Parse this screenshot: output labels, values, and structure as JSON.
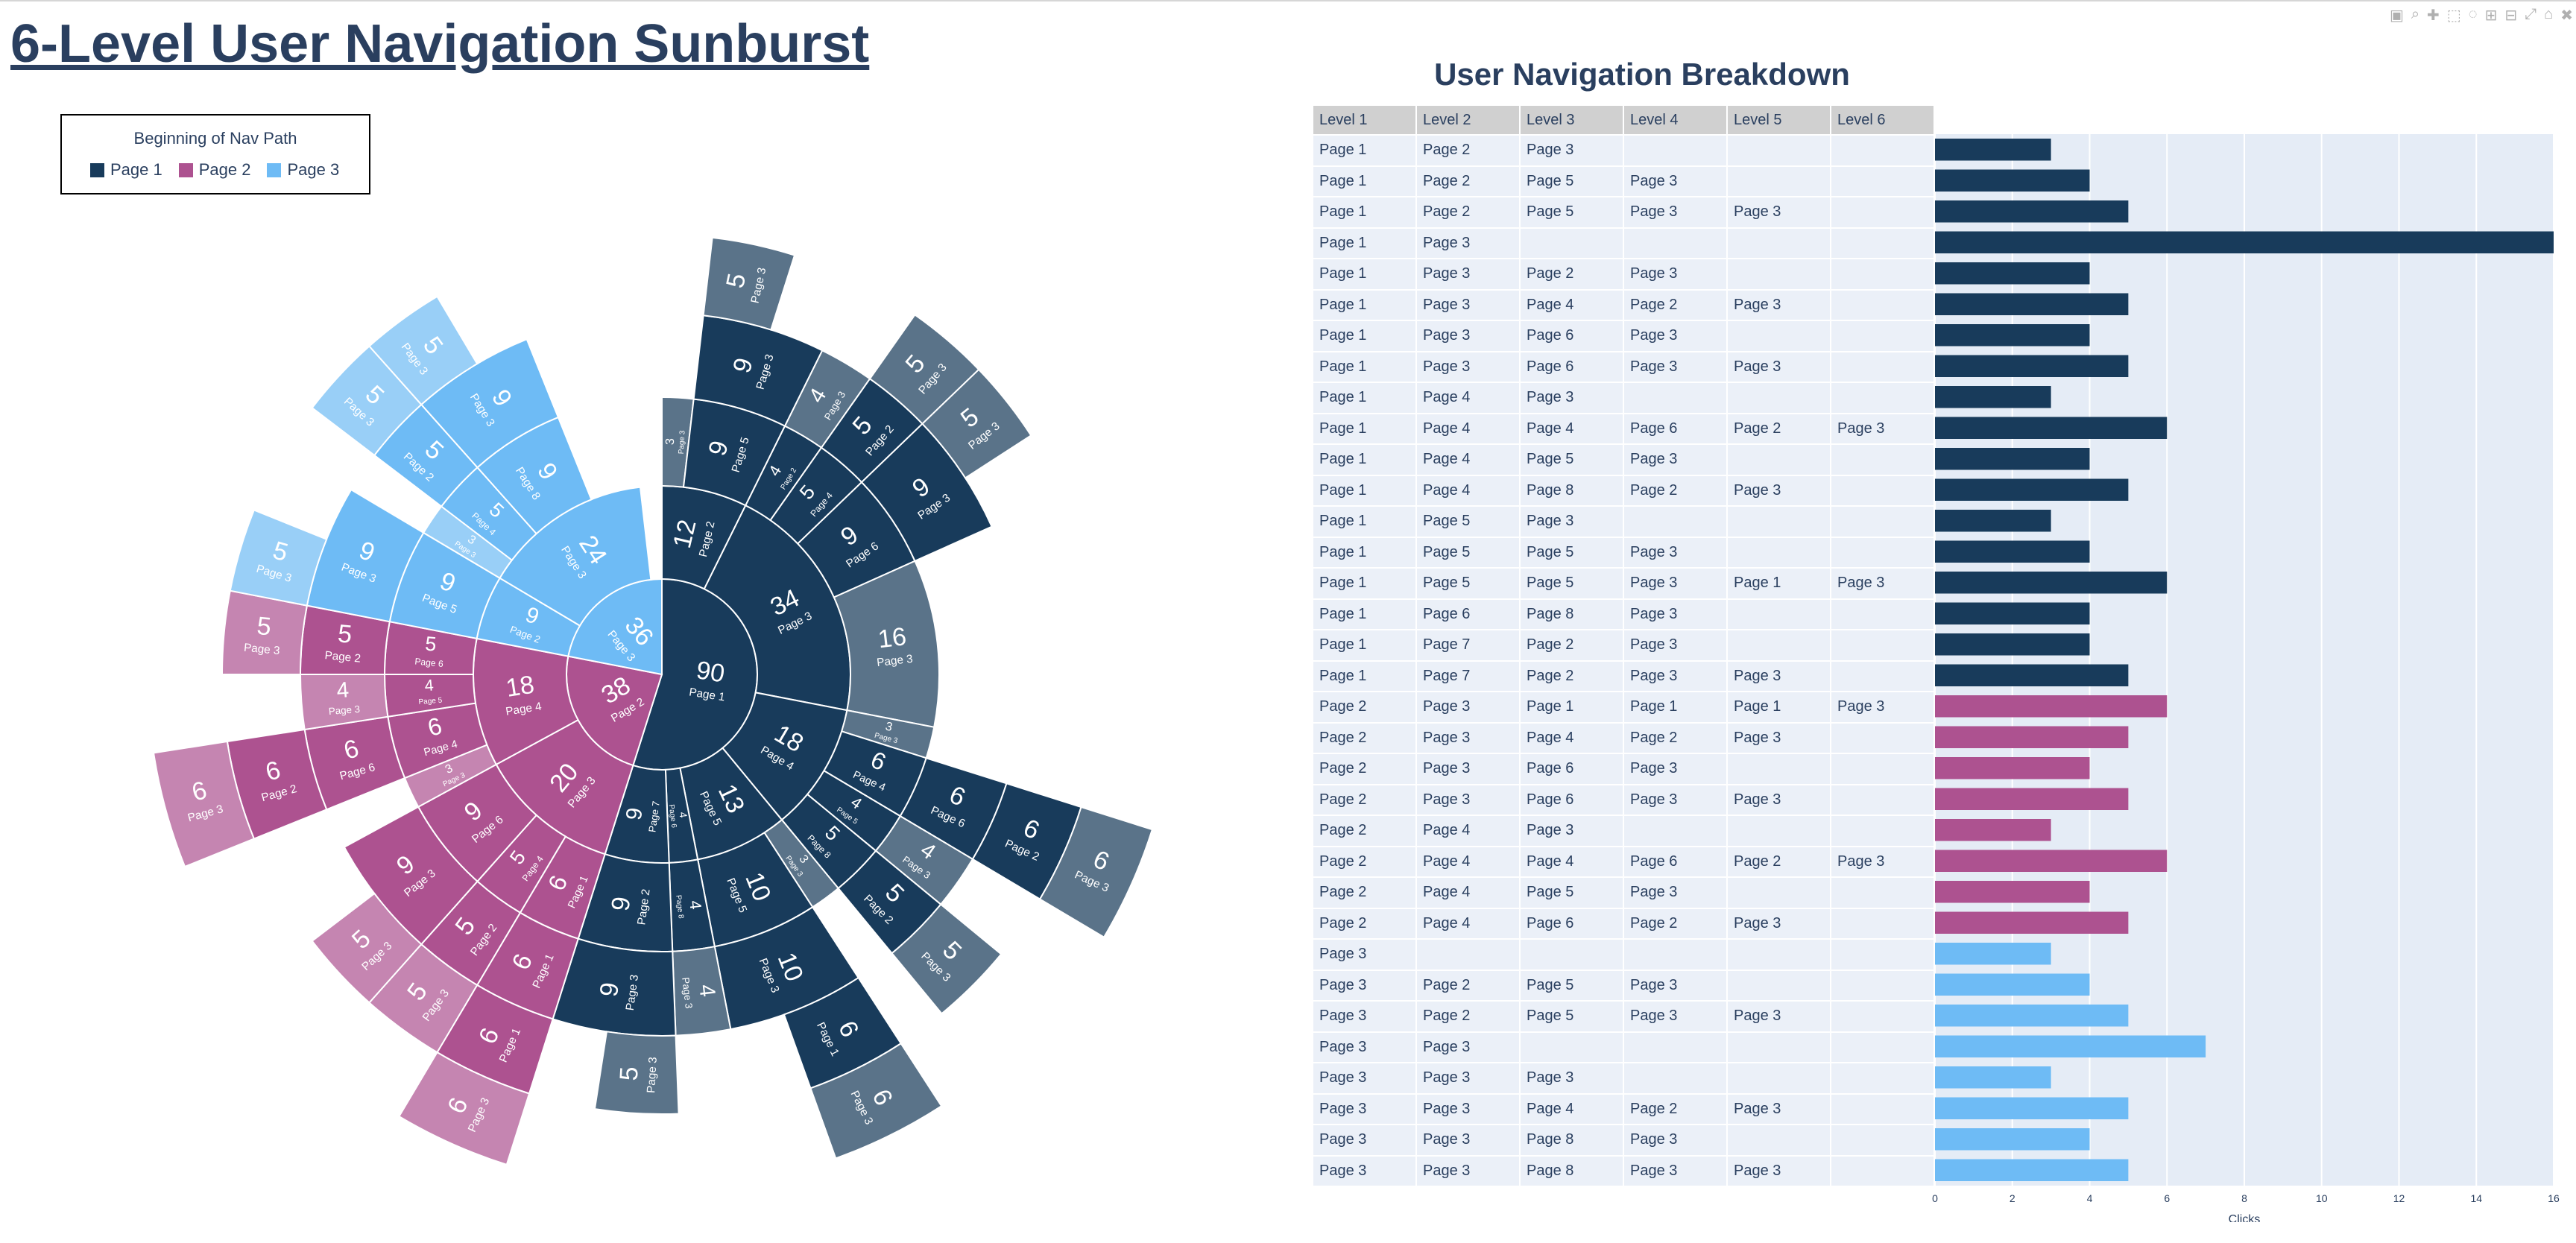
{
  "title": "6-Level User Navigation Sunburst",
  "modebar": [
    "▣",
    "⌕",
    "✚",
    "⬚",
    "◌",
    "⊞",
    "⊟",
    "⤢",
    "⌂",
    "✖"
  ],
  "legend": {
    "title": "Beginning of Nav Path",
    "items": [
      {
        "label": "Page 1",
        "color": "#183b5b"
      },
      {
        "label": "Page 2",
        "color": "#ad5290"
      },
      {
        "label": "Page 3",
        "color": "#6ebbf5"
      }
    ]
  },
  "table_title": "User Navigation Breakdown",
  "table_headers": [
    "Level 1",
    "Level 2",
    "Level 3",
    "Level 4",
    "Level 5",
    "Level 6"
  ],
  "chart_data": [
    {
      "type": "sunburst",
      "colors": {
        "Page 1": [
          "#183b5b",
          "#183b5b",
          "#5a7389"
        ],
        "Page 2": [
          "#ad5290",
          "#ad5290",
          "#c585b1"
        ],
        "Page 3": [
          "#6ebbf5",
          "#6ebbf5",
          "#99cff7"
        ]
      },
      "tree": [
        {
          "label": "Page 1",
          "value": 90,
          "children": [
            {
              "label": "Page 2",
              "value": 12,
              "children": [
                {
                  "label": "Page 3",
                  "value": 3
                },
                {
                  "label": "Page 5",
                  "value": 9,
                  "children": [
                    {
                      "label": "Page 3",
                      "value": 9,
                      "children": [
                        {
                          "label": "Page 3",
                          "value": 5
                        }
                      ]
                    }
                  ]
                }
              ]
            },
            {
              "label": "Page 3",
              "value": 34,
              "children": [
                {
                  "label": "Page 2",
                  "value": 4,
                  "children": [
                    {
                      "label": "Page 3",
                      "value": 4
                    }
                  ]
                },
                {
                  "label": "Page 4",
                  "value": 5,
                  "children": [
                    {
                      "label": "Page 2",
                      "value": 5,
                      "children": [
                        {
                          "label": "Page 3",
                          "value": 5
                        }
                      ]
                    }
                  ]
                },
                {
                  "label": "Page 6",
                  "value": 9,
                  "children": [
                    {
                      "label": "Page 3",
                      "value": 9,
                      "children": [
                        {
                          "label": "Page 3",
                          "value": 5
                        }
                      ]
                    }
                  ]
                },
                {
                  "label": "Page 3",
                  "value": 16
                }
              ]
            },
            {
              "label": "Page 4",
              "value": 18,
              "children": [
                {
                  "label": "Page 3",
                  "value": 3
                },
                {
                  "label": "Page 4",
                  "value": 6,
                  "children": [
                    {
                      "label": "Page 6",
                      "value": 6,
                      "children": [
                        {
                          "label": "Page 2",
                          "value": 6,
                          "children": [
                            {
                              "label": "Page 3",
                              "value": 6
                            }
                          ]
                        }
                      ]
                    }
                  ]
                },
                {
                  "label": "Page 5",
                  "value": 4,
                  "children": [
                    {
                      "label": "Page 3",
                      "value": 4
                    }
                  ]
                },
                {
                  "label": "Page 8",
                  "value": 5,
                  "children": [
                    {
                      "label": "Page 2",
                      "value": 5,
                      "children": [
                        {
                          "label": "Page 3",
                          "value": 5
                        }
                      ]
                    }
                  ]
                }
              ]
            },
            {
              "label": "Page 5",
              "value": 13,
              "children": [
                {
                  "label": "Page 3",
                  "value": 3
                },
                {
                  "label": "Page 5",
                  "value": 10,
                  "children": [
                    {
                      "label": "Page 3",
                      "value": 10,
                      "children": [
                        {
                          "label": "Page 1",
                          "value": 6,
                          "children": [
                            {
                              "label": "Page 3",
                              "value": 6
                            }
                          ]
                        }
                      ]
                    }
                  ]
                }
              ]
            },
            {
              "label": "Page 6",
              "value": 4,
              "children": [
                {
                  "label": "Page 8",
                  "value": 4,
                  "children": [
                    {
                      "label": "Page 3",
                      "value": 4
                    }
                  ]
                }
              ]
            },
            {
              "label": "Page 7",
              "value": 9,
              "children": [
                {
                  "label": "Page 2",
                  "value": 9,
                  "children": [
                    {
                      "label": "Page 3",
                      "value": 9,
                      "children": [
                        {
                          "label": "Page 3",
                          "value": 5
                        }
                      ]
                    }
                  ]
                }
              ]
            }
          ]
        },
        {
          "label": "Page 2",
          "value": 38,
          "children": [
            {
              "label": "Page 3",
              "value": 20,
              "children": [
                {
                  "label": "Page 1",
                  "value": 6,
                  "children": [
                    {
                      "label": "Page 1",
                      "value": 6,
                      "children": [
                        {
                          "label": "Page 1",
                          "value": 6,
                          "children": [
                            {
                              "label": "Page 3",
                              "value": 6
                            }
                          ]
                        }
                      ]
                    }
                  ]
                },
                {
                  "label": "Page 4",
                  "value": 5,
                  "children": [
                    {
                      "label": "Page 2",
                      "value": 5,
                      "children": [
                        {
                          "label": "Page 3",
                          "value": 5
                        }
                      ]
                    }
                  ]
                },
                {
                  "label": "Page 6",
                  "value": 9,
                  "children": [
                    {
                      "label": "Page 3",
                      "value": 9,
                      "children": [
                        {
                          "label": "Page 3",
                          "value": 5
                        }
                      ]
                    }
                  ]
                }
              ]
            },
            {
              "label": "Page 4",
              "value": 18,
              "children": [
                {
                  "label": "Page 3",
                  "value": 3
                },
                {
                  "label": "Page 4",
                  "value": 6,
                  "children": [
                    {
                      "label": "Page 6",
                      "value": 6,
                      "children": [
                        {
                          "label": "Page 2",
                          "value": 6,
                          "children": [
                            {
                              "label": "Page 3",
                              "value": 6
                            }
                          ]
                        }
                      ]
                    }
                  ]
                },
                {
                  "label": "Page 5",
                  "value": 4,
                  "children": [
                    {
                      "label": "Page 3",
                      "value": 4
                    }
                  ]
                },
                {
                  "label": "Page 6",
                  "value": 5,
                  "children": [
                    {
                      "label": "Page 2",
                      "value": 5,
                      "children": [
                        {
                          "label": "Page 3",
                          "value": 5
                        }
                      ]
                    }
                  ]
                }
              ]
            }
          ]
        },
        {
          "label": "Page 3",
          "value": 36,
          "children": [
            {
              "label": "Page 2",
              "value": 9,
              "children": [
                {
                  "label": "Page 5",
                  "value": 9,
                  "children": [
                    {
                      "label": "Page 3",
                      "value": 9,
                      "children": [
                        {
                          "label": "Page 3",
                          "value": 5
                        }
                      ]
                    }
                  ]
                }
              ]
            },
            {
              "label": "Page 3",
              "value": 24,
              "children": [
                {
                  "label": "Page 3",
                  "value": 3
                },
                {
                  "label": "Page 4",
                  "value": 5,
                  "children": [
                    {
                      "label": "Page 2",
                      "value": 5,
                      "children": [
                        {
                          "label": "Page 3",
                          "value": 5
                        }
                      ]
                    }
                  ]
                },
                {
                  "label": "Page 8",
                  "value": 9,
                  "children": [
                    {
                      "label": "Page 3",
                      "value": 9,
                      "children": [
                        {
                          "label": "Page 3",
                          "value": 5
                        }
                      ]
                    }
                  ]
                }
              ]
            }
          ]
        }
      ]
    },
    {
      "type": "bar",
      "orientation": "horizontal",
      "xlabel": "Clicks",
      "xlim": [
        0,
        16
      ],
      "xticks": [
        0,
        2,
        4,
        6,
        8,
        10,
        12,
        14,
        16
      ],
      "rows": [
        {
          "path": [
            "Page 1",
            "Page 2",
            "Page 3",
            "",
            "",
            ""
          ],
          "clicks": 3
        },
        {
          "path": [
            "Page 1",
            "Page 2",
            "Page 5",
            "Page 3",
            "",
            ""
          ],
          "clicks": 4
        },
        {
          "path": [
            "Page 1",
            "Page 2",
            "Page 5",
            "Page 3",
            "Page 3",
            ""
          ],
          "clicks": 5
        },
        {
          "path": [
            "Page 1",
            "Page 3",
            "",
            "",
            "",
            ""
          ],
          "clicks": 16
        },
        {
          "path": [
            "Page 1",
            "Page 3",
            "Page 2",
            "Page 3",
            "",
            ""
          ],
          "clicks": 4
        },
        {
          "path": [
            "Page 1",
            "Page 3",
            "Page 4",
            "Page 2",
            "Page 3",
            ""
          ],
          "clicks": 5
        },
        {
          "path": [
            "Page 1",
            "Page 3",
            "Page 6",
            "Page 3",
            "",
            ""
          ],
          "clicks": 4
        },
        {
          "path": [
            "Page 1",
            "Page 3",
            "Page 6",
            "Page 3",
            "Page 3",
            ""
          ],
          "clicks": 5
        },
        {
          "path": [
            "Page 1",
            "Page 4",
            "Page 3",
            "",
            "",
            ""
          ],
          "clicks": 3
        },
        {
          "path": [
            "Page 1",
            "Page 4",
            "Page 4",
            "Page 6",
            "Page 2",
            "Page 3"
          ],
          "clicks": 6
        },
        {
          "path": [
            "Page 1",
            "Page 4",
            "Page 5",
            "Page 3",
            "",
            ""
          ],
          "clicks": 4
        },
        {
          "path": [
            "Page 1",
            "Page 4",
            "Page 8",
            "Page 2",
            "Page 3",
            ""
          ],
          "clicks": 5
        },
        {
          "path": [
            "Page 1",
            "Page 5",
            "Page 3",
            "",
            "",
            ""
          ],
          "clicks": 3
        },
        {
          "path": [
            "Page 1",
            "Page 5",
            "Page 5",
            "Page 3",
            "",
            ""
          ],
          "clicks": 4
        },
        {
          "path": [
            "Page 1",
            "Page 5",
            "Page 5",
            "Page 3",
            "Page 1",
            "Page 3"
          ],
          "clicks": 6
        },
        {
          "path": [
            "Page 1",
            "Page 6",
            "Page 8",
            "Page 3",
            "",
            ""
          ],
          "clicks": 4
        },
        {
          "path": [
            "Page 1",
            "Page 7",
            "Page 2",
            "Page 3",
            "",
            ""
          ],
          "clicks": 4
        },
        {
          "path": [
            "Page 1",
            "Page 7",
            "Page 2",
            "Page 3",
            "Page 3",
            ""
          ],
          "clicks": 5
        },
        {
          "path": [
            "Page 2",
            "Page 3",
            "Page 1",
            "Page 1",
            "Page 1",
            "Page 3"
          ],
          "clicks": 6
        },
        {
          "path": [
            "Page 2",
            "Page 3",
            "Page 4",
            "Page 2",
            "Page 3",
            ""
          ],
          "clicks": 5
        },
        {
          "path": [
            "Page 2",
            "Page 3",
            "Page 6",
            "Page 3",
            "",
            ""
          ],
          "clicks": 4
        },
        {
          "path": [
            "Page 2",
            "Page 3",
            "Page 6",
            "Page 3",
            "Page 3",
            ""
          ],
          "clicks": 5
        },
        {
          "path": [
            "Page 2",
            "Page 4",
            "Page 3",
            "",
            "",
            ""
          ],
          "clicks": 3
        },
        {
          "path": [
            "Page 2",
            "Page 4",
            "Page 4",
            "Page 6",
            "Page 2",
            "Page 3"
          ],
          "clicks": 6
        },
        {
          "path": [
            "Page 2",
            "Page 4",
            "Page 5",
            "Page 3",
            "",
            ""
          ],
          "clicks": 4
        },
        {
          "path": [
            "Page 2",
            "Page 4",
            "Page 6",
            "Page 2",
            "Page 3",
            ""
          ],
          "clicks": 5
        },
        {
          "path": [
            "Page 3",
            "",
            "",
            "",
            "",
            ""
          ],
          "clicks": 3
        },
        {
          "path": [
            "Page 3",
            "Page 2",
            "Page 5",
            "Page 3",
            "",
            ""
          ],
          "clicks": 4
        },
        {
          "path": [
            "Page 3",
            "Page 2",
            "Page 5",
            "Page 3",
            "Page 3",
            ""
          ],
          "clicks": 5
        },
        {
          "path": [
            "Page 3",
            "Page 3",
            "",
            "",
            "",
            ""
          ],
          "clicks": 7
        },
        {
          "path": [
            "Page 3",
            "Page 3",
            "Page 3",
            "",
            "",
            ""
          ],
          "clicks": 3
        },
        {
          "path": [
            "Page 3",
            "Page 3",
            "Page 4",
            "Page 2",
            "Page 3",
            ""
          ],
          "clicks": 5
        },
        {
          "path": [
            "Page 3",
            "Page 3",
            "Page 8",
            "Page 3",
            "",
            ""
          ],
          "clicks": 4
        },
        {
          "path": [
            "Page 3",
            "Page 3",
            "Page 8",
            "Page 3",
            "Page 3",
            ""
          ],
          "clicks": 5
        }
      ]
    }
  ]
}
